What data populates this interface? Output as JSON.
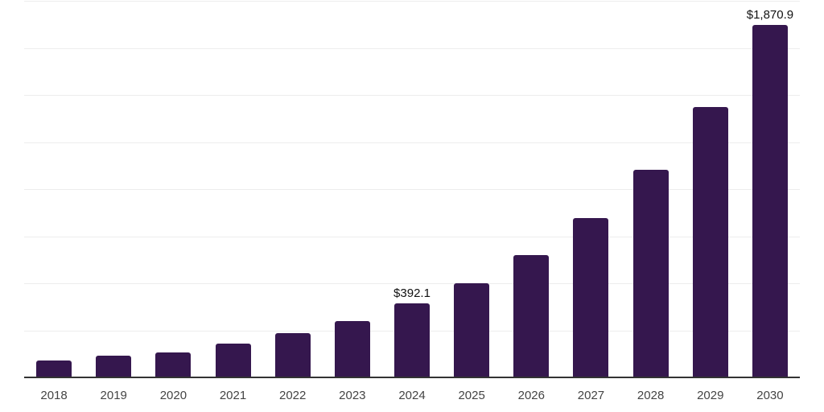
{
  "chart_data": {
    "type": "bar",
    "categories": [
      "2018",
      "2019",
      "2020",
      "2021",
      "2022",
      "2023",
      "2024",
      "2025",
      "2026",
      "2027",
      "2028",
      "2029",
      "2030"
    ],
    "values": [
      90,
      115,
      134,
      178,
      234,
      298,
      392.1,
      500,
      650,
      846,
      1101,
      1436,
      1870.9
    ],
    "value_labels": {
      "2024": "$392.1",
      "2030": "$1,870.9"
    },
    "title": "",
    "xlabel": "",
    "ylabel": "",
    "ylim": [
      0,
      2000
    ],
    "gridline_step": 250,
    "grid": true,
    "legend": "none",
    "colors": {
      "bar": "#35174e",
      "gridline": "#ededed",
      "axis_line": "#333333",
      "x_label": "#444444",
      "value_label": "#111111",
      "background": "#ffffff"
    }
  }
}
